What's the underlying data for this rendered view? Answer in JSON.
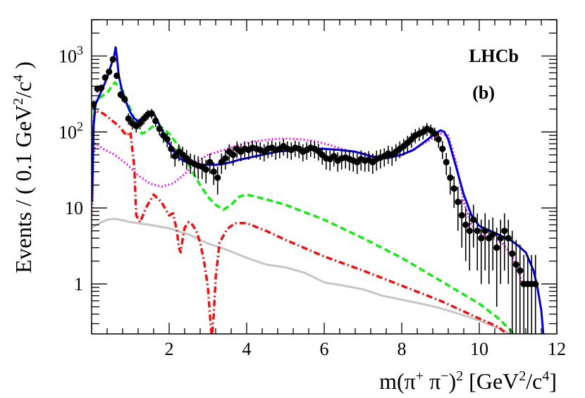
{
  "chart_data": {
    "type": "scatter",
    "title": "",
    "experiment_label": "LHCb",
    "panel_label": "(b)",
    "xlabel": {
      "prefix": "m(π",
      "plus": "+",
      "middle": " π",
      "minus": "−",
      "suffix": ")",
      "power": "2",
      "units_open": " [GeV",
      "units_power": "2",
      "units_mid": "/c",
      "units_power2": "4",
      "units_close": "]"
    },
    "ylabel": {
      "prefix": "Events / ( 0.1 GeV",
      "power": "2",
      "mid": "/c",
      "power2": "4",
      "suffix": " )"
    },
    "xlim": [
      0,
      12
    ],
    "ylim": [
      0.22,
      3000
    ],
    "yscale": "log",
    "x_ticks": [
      {
        "v": 2,
        "label": "2"
      },
      {
        "v": 4,
        "label": "4"
      },
      {
        "v": 6,
        "label": "6"
      },
      {
        "v": 8,
        "label": "8"
      },
      {
        "v": 10,
        "label": "10"
      },
      {
        "v": 12,
        "label": "12"
      }
    ],
    "y_ticks": [
      {
        "v": 1,
        "label": "1"
      },
      {
        "v": 10,
        "label": "10"
      },
      {
        "v": 100,
        "label": "10",
        "exp": "2"
      },
      {
        "v": 1000,
        "label": "10",
        "exp": "3"
      }
    ],
    "data_points": {
      "x": [
        0.05,
        0.15,
        0.25,
        0.35,
        0.45,
        0.55,
        0.65,
        0.75,
        0.85,
        0.95,
        1.05,
        1.15,
        1.25,
        1.35,
        1.45,
        1.55,
        1.65,
        1.75,
        1.85,
        1.95,
        2.05,
        2.15,
        2.25,
        2.35,
        2.45,
        2.55,
        2.65,
        2.75,
        2.85,
        2.95,
        3.05,
        3.15,
        3.25,
        3.35,
        3.45,
        3.55,
        3.65,
        3.75,
        3.85,
        3.95,
        4.05,
        4.15,
        4.25,
        4.35,
        4.45,
        4.55,
        4.65,
        4.75,
        4.85,
        4.95,
        5.05,
        5.15,
        5.25,
        5.35,
        5.45,
        5.55,
        5.65,
        5.75,
        5.85,
        5.95,
        6.05,
        6.15,
        6.25,
        6.35,
        6.45,
        6.55,
        6.65,
        6.75,
        6.85,
        6.95,
        7.05,
        7.15,
        7.25,
        7.35,
        7.45,
        7.55,
        7.65,
        7.75,
        7.85,
        7.95,
        8.05,
        8.15,
        8.25,
        8.35,
        8.45,
        8.55,
        8.65,
        8.75,
        8.85,
        8.95,
        9.05,
        9.15,
        9.25,
        9.35,
        9.45,
        9.55,
        9.65,
        9.75,
        9.85,
        9.95,
        10.05,
        10.15,
        10.25,
        10.35,
        10.45,
        10.55,
        10.65,
        10.75,
        10.85,
        10.95,
        11.05,
        11.15,
        11.25,
        11.35,
        11.45
      ],
      "y": [
        230,
        370,
        380,
        520,
        620,
        900,
        550,
        310,
        270,
        150,
        130,
        120,
        130,
        150,
        170,
        175,
        140,
        110,
        90,
        80,
        60,
        48,
        55,
        50,
        45,
        40,
        38,
        36,
        35,
        32,
        40,
        30,
        25,
        40,
        45,
        55,
        50,
        60,
        55,
        60,
        58,
        62,
        60,
        58,
        55,
        60,
        62,
        58,
        60,
        65,
        60,
        58,
        62,
        60,
        55,
        58,
        62,
        60,
        56,
        50,
        45,
        44,
        48,
        42,
        45,
        46,
        44,
        42,
        40,
        44,
        42,
        43,
        40,
        44,
        46,
        48,
        52,
        50,
        55,
        60,
        65,
        72,
        80,
        90,
        95,
        100,
        110,
        105,
        95,
        80,
        60,
        40,
        25,
        18,
        12,
        8,
        6,
        5,
        7,
        5,
        4,
        5,
        4,
        4.5,
        3,
        4,
        5,
        4,
        2.5,
        1.8,
        1.5,
        1,
        1,
        1,
        1
      ],
      "err": [
        30,
        40,
        40,
        50,
        55,
        70,
        50,
        35,
        32,
        25,
        22,
        22,
        22,
        24,
        26,
        26,
        24,
        20,
        18,
        17,
        15,
        13,
        14,
        14,
        13,
        12,
        12,
        12,
        11,
        11,
        12,
        10,
        10,
        12,
        13,
        14,
        14,
        15,
        14,
        15,
        15,
        15,
        15,
        15,
        14,
        15,
        15,
        15,
        15,
        16,
        15,
        15,
        15,
        15,
        14,
        15,
        15,
        15,
        14,
        13,
        13,
        13,
        13,
        12,
        13,
        13,
        13,
        12,
        12,
        13,
        12,
        13,
        12,
        13,
        13,
        13,
        14,
        14,
        14,
        15,
        16,
        17,
        18,
        19,
        19,
        20,
        21,
        20,
        19,
        18,
        16,
        13,
        10,
        8,
        7,
        5,
        4,
        3.5,
        4,
        3.5,
        3,
        3.5,
        3,
        3,
        2.5,
        3,
        3.5,
        3,
        2.5,
        2,
        1.8,
        1.4,
        1.4,
        1.4,
        1.4
      ]
    },
    "series": [
      {
        "name": "total_fit",
        "color": "#0000d6",
        "style": "solid",
        "x": [
          0.01,
          0.05,
          0.1,
          0.2,
          0.3,
          0.4,
          0.5,
          0.58,
          0.62,
          0.66,
          0.7,
          0.78,
          0.9,
          1.0,
          1.1,
          1.2,
          1.3,
          1.4,
          1.5,
          1.6,
          1.7,
          1.8,
          1.9,
          2.0,
          2.1,
          2.2,
          2.3,
          2.4,
          2.6,
          2.8,
          3.0,
          3.2,
          3.4,
          3.6,
          3.8,
          4.0,
          4.4,
          4.8,
          5.2,
          5.6,
          6.0,
          6.4,
          6.8,
          7.2,
          7.6,
          8.0,
          8.3,
          8.6,
          8.8,
          9.0,
          9.1,
          9.2,
          9.4,
          9.6,
          9.8,
          10.0,
          10.2,
          10.4,
          10.6,
          10.8,
          11.0,
          11.2,
          11.4,
          11.5,
          11.6,
          11.65
        ],
        "y": [
          12,
          120,
          230,
          300,
          390,
          520,
          750,
          1000,
          1300,
          900,
          550,
          360,
          240,
          180,
          150,
          140,
          150,
          170,
          185,
          175,
          140,
          110,
          85,
          70,
          58,
          48,
          44,
          41,
          38,
          37,
          37,
          37,
          38,
          40,
          43,
          45,
          50,
          55,
          58,
          60,
          60,
          58,
          55,
          48,
          45,
          50,
          58,
          75,
          90,
          105,
          100,
          80,
          35,
          15,
          8,
          5.8,
          5.2,
          4.7,
          4.2,
          3.8,
          3.2,
          2.6,
          1.5,
          0.9,
          0.45,
          0.22
        ]
      },
      {
        "name": "component_green",
        "color": "#18e818",
        "style": "dashed",
        "x": [
          0.01,
          0.05,
          0.1,
          0.2,
          0.4,
          0.6,
          0.8,
          1.0,
          1.1,
          1.2,
          1.3,
          1.4,
          1.5,
          1.6,
          1.8,
          2.0,
          2.2,
          2.4,
          2.6,
          2.8,
          3.0,
          3.2,
          3.4,
          3.6,
          3.8,
          4.0,
          4.5,
          5.0,
          6.0,
          7.0,
          8.0,
          9.0,
          10.0,
          10.5,
          10.9
        ],
        "y": [
          20,
          150,
          250,
          280,
          330,
          450,
          350,
          200,
          150,
          110,
          95,
          100,
          110,
          120,
          115,
          95,
          70,
          48,
          30,
          20,
          14,
          11,
          9.5,
          11,
          14,
          15,
          13,
          11,
          7,
          4,
          2.2,
          1.1,
          0.55,
          0.35,
          0.22
        ]
      },
      {
        "name": "component_red",
        "color": "#ee1010",
        "style": "dashdot",
        "x": [
          0.01,
          0.05,
          0.1,
          0.3,
          0.5,
          0.7,
          0.9,
          1.0,
          1.1,
          1.15,
          1.25,
          1.4,
          1.6,
          1.8,
          2.0,
          2.1,
          2.2,
          2.25,
          2.3,
          2.35,
          2.4,
          2.5,
          2.6,
          2.7,
          2.8,
          2.9,
          3.0,
          3.05,
          3.1,
          3.15,
          3.2,
          3.3,
          3.5,
          3.7,
          4.0,
          4.5,
          5.0,
          6.0,
          7.0,
          8.0,
          9.0,
          10.0,
          10.5,
          10.8
        ],
        "y": [
          20,
          150,
          190,
          175,
          145,
          120,
          90,
          100,
          35,
          8,
          6.5,
          10,
          15,
          12,
          8,
          8.5,
          5,
          3,
          2.6,
          4,
          5.5,
          6.5,
          6,
          5,
          3.5,
          2,
          0.9,
          0.4,
          0.2,
          0.4,
          1.2,
          3.5,
          5.3,
          6.3,
          6.3,
          5,
          3.8,
          2.3,
          1.5,
          0.95,
          0.6,
          0.35,
          0.27,
          0.2
        ]
      },
      {
        "name": "component_magenta",
        "color": "#e81ae8",
        "style": "dotted",
        "x": [
          0.01,
          0.05,
          0.1,
          0.3,
          0.6,
          0.9,
          1.2,
          1.5,
          1.8,
          2.1,
          2.4,
          2.7,
          3.0,
          3.4,
          3.8,
          4.2,
          4.6,
          5.0,
          5.4,
          5.8,
          6.2,
          6.6,
          7.0,
          7.4,
          7.8,
          8.2,
          8.6,
          9.0,
          9.2,
          9.4,
          9.6,
          9.8,
          10.0,
          10.2,
          10.4,
          10.6,
          10.8,
          11.0,
          11.1
        ],
        "y": [
          8,
          50,
          70,
          60,
          50,
          38,
          27,
          21,
          19,
          21,
          28,
          40,
          50,
          58,
          68,
          75,
          80,
          82,
          80,
          75,
          66,
          57,
          52,
          48,
          48,
          55,
          72,
          95,
          90,
          40,
          12,
          6,
          4.6,
          4.2,
          3.9,
          3.4,
          2.5,
          1.6,
          1
        ]
      },
      {
        "name": "background_gray",
        "color": "#c6c6c6",
        "style": "solid",
        "x": [
          0.01,
          0.2,
          0.4,
          0.6,
          0.8,
          1.0,
          1.5,
          2.0,
          2.5,
          3.0,
          3.5,
          4.0,
          4.5,
          5.0,
          5.5,
          6.0,
          6.5,
          7.0,
          7.5,
          8.0,
          8.5,
          9.0,
          9.5,
          10.0,
          10.5,
          10.8
        ],
        "y": [
          5.5,
          6.3,
          7.0,
          7.2,
          6.9,
          6.5,
          6.0,
          5.4,
          4.5,
          3.4,
          2.8,
          2.2,
          1.8,
          1.65,
          1.4,
          1.05,
          0.95,
          0.85,
          0.7,
          0.62,
          0.55,
          0.48,
          0.4,
          0.33,
          0.26,
          0.22
        ]
      }
    ]
  }
}
